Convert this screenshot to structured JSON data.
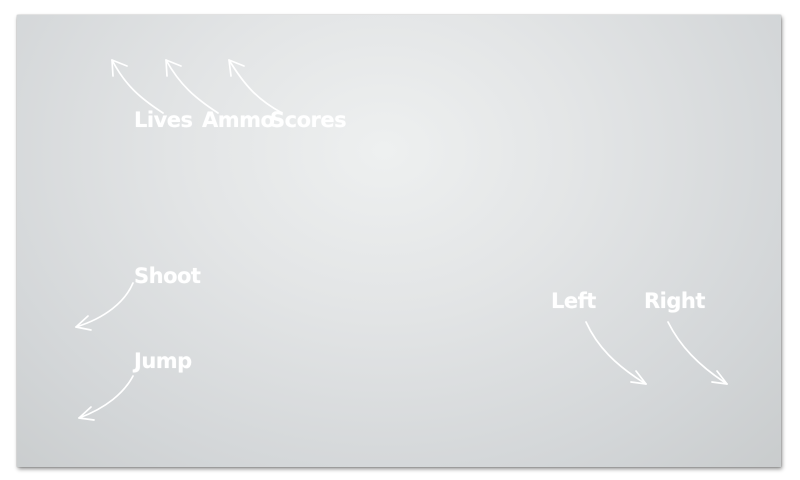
{
  "tutorial_overlay": {
    "hud_labels": {
      "lives": "Lives",
      "ammo": "Ammo",
      "scores": "Scores"
    },
    "controls": {
      "shoot": "Shoot",
      "jump": "Jump",
      "left": "Left",
      "right": "Right"
    },
    "colors": {
      "panel": "#e3e5e6",
      "text": "#ffffff",
      "arrows": "#ffffff"
    }
  }
}
